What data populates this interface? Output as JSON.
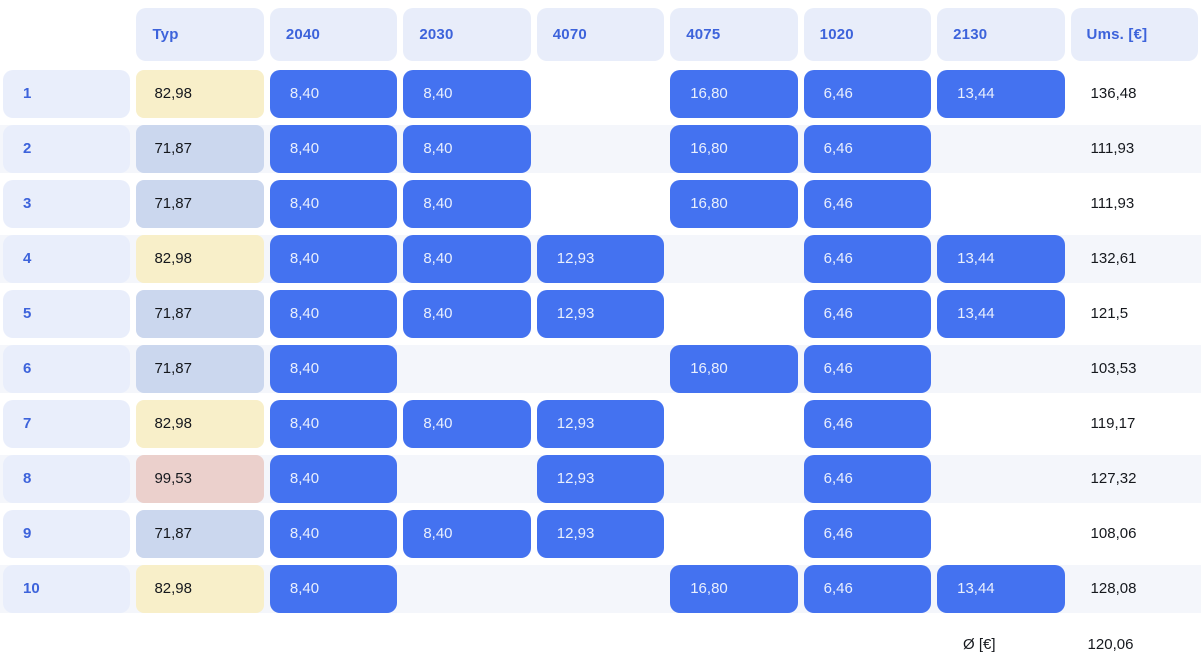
{
  "header": {
    "columns": [
      "Typ",
      "2040",
      "2030",
      "4070",
      "4075",
      "1020",
      "2130",
      "Ums. [€]"
    ]
  },
  "value_columns": [
    "2040",
    "2030",
    "4070",
    "4075",
    "1020",
    "2130"
  ],
  "rows": [
    {
      "num": "1",
      "typ": {
        "value": "82,98",
        "variant": "yellow"
      },
      "values": [
        "8,40",
        "8,40",
        null,
        "16,80",
        "6,46",
        "13,44"
      ],
      "total": "136,48"
    },
    {
      "num": "2",
      "typ": {
        "value": "71,87",
        "variant": "blue"
      },
      "values": [
        "8,40",
        "8,40",
        null,
        "16,80",
        "6,46",
        null
      ],
      "total": "111,93"
    },
    {
      "num": "3",
      "typ": {
        "value": "71,87",
        "variant": "blue"
      },
      "values": [
        "8,40",
        "8,40",
        null,
        "16,80",
        "6,46",
        null
      ],
      "total": "111,93"
    },
    {
      "num": "4",
      "typ": {
        "value": "82,98",
        "variant": "yellow"
      },
      "values": [
        "8,40",
        "8,40",
        "12,93",
        null,
        "6,46",
        "13,44"
      ],
      "total": "132,61"
    },
    {
      "num": "5",
      "typ": {
        "value": "71,87",
        "variant": "blue"
      },
      "values": [
        "8,40",
        "8,40",
        "12,93",
        null,
        "6,46",
        "13,44"
      ],
      "total": "121,5"
    },
    {
      "num": "6",
      "typ": {
        "value": "71,87",
        "variant": "blue"
      },
      "values": [
        "8,40",
        null,
        null,
        "16,80",
        "6,46",
        null
      ],
      "total": "103,53"
    },
    {
      "num": "7",
      "typ": {
        "value": "82,98",
        "variant": "yellow"
      },
      "values": [
        "8,40",
        "8,40",
        "12,93",
        null,
        "6,46",
        null
      ],
      "total": "119,17"
    },
    {
      "num": "8",
      "typ": {
        "value": "99,53",
        "variant": "pink"
      },
      "values": [
        "8,40",
        null,
        "12,93",
        null,
        "6,46",
        null
      ],
      "total": "127,32"
    },
    {
      "num": "9",
      "typ": {
        "value": "71,87",
        "variant": "blue"
      },
      "values": [
        "8,40",
        "8,40",
        "12,93",
        null,
        "6,46",
        null
      ],
      "total": "108,06"
    },
    {
      "num": "10",
      "typ": {
        "value": "82,98",
        "variant": "yellow"
      },
      "values": [
        "8,40",
        null,
        null,
        "16,80",
        "6,46",
        "13,44"
      ],
      "total": "128,08"
    }
  ],
  "footer": {
    "average_label": "Ø [€]",
    "average_value": "120,06"
  },
  "colors": {
    "pill": "#4472F0",
    "pill_text": "#E9EFFD",
    "header_chip": "#E8EDFA",
    "label_chip": "#E9EEFB",
    "header_text": "#3D63DB",
    "stripe": "#F4F6FB",
    "typ_yellow": "#F8EFC9",
    "typ_blue": "#CBD7EE",
    "typ_pink": "#EBD0CC",
    "text_dark": "#15181D"
  }
}
